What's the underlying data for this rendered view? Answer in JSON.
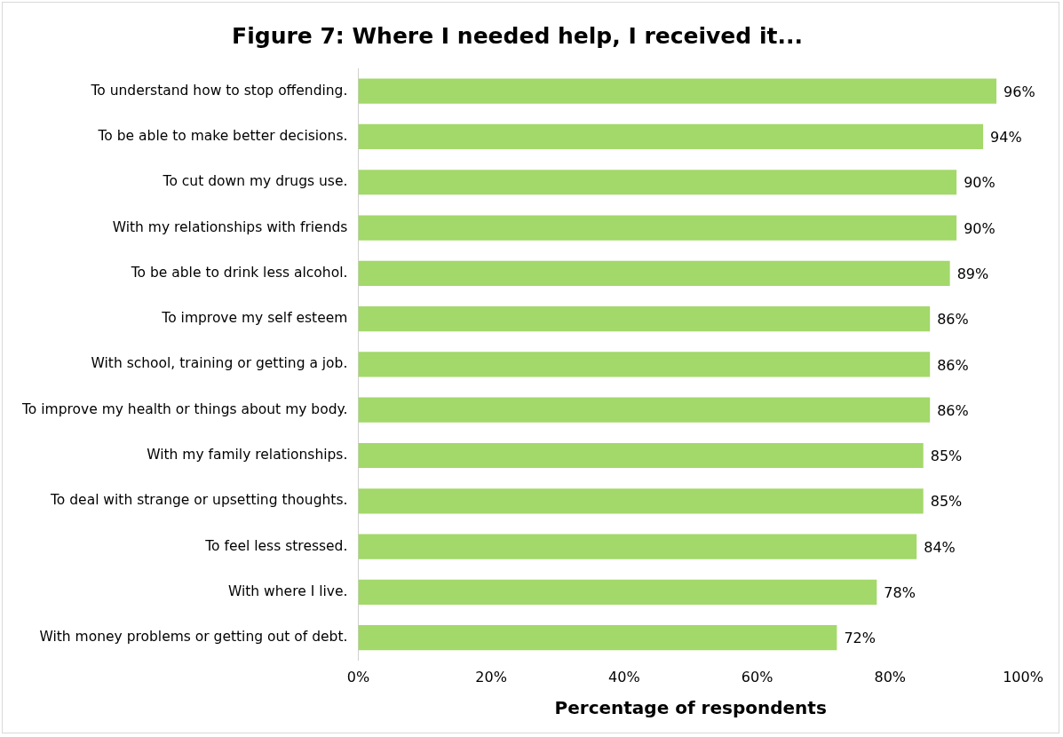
{
  "chart_data": {
    "type": "bar",
    "orientation": "horizontal",
    "title": "Figure 7: Where I needed help, I received it...",
    "xlabel": "Percentage of respondents",
    "categories": [
      "To understand how to stop offending.",
      "To be able to make better decisions.",
      "To cut down my drugs use.",
      "With my relationships with friends",
      "To be able to drink less alcohol.",
      "To improve my self esteem",
      "With school, training or getting a job.",
      "To improve my health or things about my body.",
      "With my family relationships.",
      "To deal with strange or upsetting thoughts.",
      "To feel less stressed.",
      "With where I live.",
      "With money problems or getting out of debt."
    ],
    "values": [
      96,
      94,
      90,
      90,
      89,
      86,
      86,
      86,
      85,
      85,
      84,
      78,
      72
    ],
    "value_labels": [
      "96%",
      "94%",
      "90%",
      "90%",
      "89%",
      "86%",
      "86%",
      "86%",
      "85%",
      "85%",
      "84%",
      "78%",
      "72%"
    ],
    "color": "#a3d86a",
    "xlim": [
      0,
      100
    ],
    "xticks": [
      {
        "value": 0,
        "label": "0%"
      },
      {
        "value": 20,
        "label": "20%"
      },
      {
        "value": 40,
        "label": "40%"
      },
      {
        "value": 60,
        "label": "60%"
      },
      {
        "value": 80,
        "label": "80%"
      },
      {
        "value": 100,
        "label": "100%"
      }
    ],
    "grid": false,
    "legend": false
  }
}
